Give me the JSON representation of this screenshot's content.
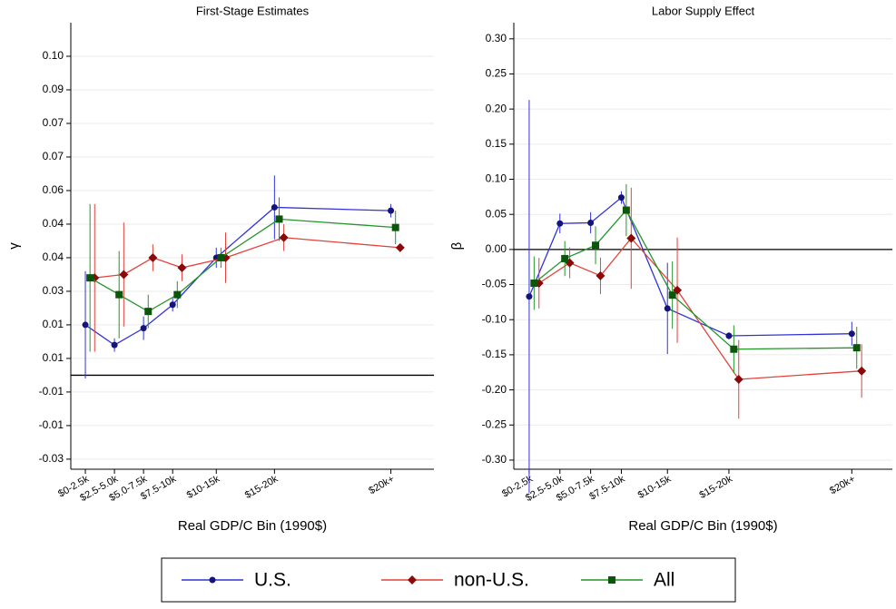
{
  "chart_data": [
    {
      "type": "line",
      "title": "First-Stage Estimates",
      "x_label": "Real GDP/C Bin (1990$)",
      "y_label": "γ",
      "xlim": [
        0,
        31.2
      ],
      "xticks": [
        {
          "value": 1.25,
          "label": "$0-2.5k"
        },
        {
          "value": 3.75,
          "label": "$2.5-5.0k"
        },
        {
          "value": 6.25,
          "label": "$5.0-7.5k"
        },
        {
          "value": 8.75,
          "label": "$7.5-10k"
        },
        {
          "value": 12.5,
          "label": "$10-15k"
        },
        {
          "value": 17.5,
          "label": "$15-20k"
        },
        {
          "value": 27.5,
          "label": "$20k+"
        }
      ],
      "ylim": [
        -0.028,
        0.105
      ],
      "yticks": [
        {
          "value": -0.025,
          "label": "-0.03"
        },
        {
          "value": -0.015,
          "label": "-0.01"
        },
        {
          "value": -0.005,
          "label": "-0.01"
        },
        {
          "value": 0.005,
          "label": "0.01"
        },
        {
          "value": 0.015,
          "label": "0.01"
        },
        {
          "value": 0.025,
          "label": "0.03"
        },
        {
          "value": 0.035,
          "label": "0.04"
        },
        {
          "value": 0.045,
          "label": "0.04"
        },
        {
          "value": 0.055,
          "label": "0.06"
        },
        {
          "value": 0.065,
          "label": "0.07"
        },
        {
          "value": 0.075,
          "label": "0.07"
        },
        {
          "value": 0.085,
          "label": "0.09"
        },
        {
          "value": 0.095,
          "label": "0.10"
        }
      ],
      "grid": true,
      "hline": 0,
      "series": [
        {
          "name": "U.S.",
          "color": "#3232d8",
          "marker": "circle",
          "marker_color": "#14147a",
          "x": [
            1.25,
            3.75,
            6.25,
            8.75,
            12.5,
            17.5,
            27.5
          ],
          "values": [
            0.015,
            0.009,
            0.014,
            0.021,
            0.035,
            0.05,
            0.049
          ],
          "errors": [
            0.016,
            0.002,
            0.0035,
            0.002,
            0.003,
            0.0095,
            0.002
          ]
        },
        {
          "name": "non-U.S.",
          "color": "#e2423a",
          "marker": "diamond",
          "marker_color": "#8a0a0a",
          "x": [
            2.05,
            4.55,
            7.05,
            9.55,
            13.3,
            18.3,
            28.3
          ],
          "values": [
            0.029,
            0.03,
            0.035,
            0.032,
            0.035,
            0.041,
            0.038
          ],
          "errors": [
            0.022,
            0.0155,
            0.004,
            0.004,
            0.0075,
            0.004,
            0
          ]
        },
        {
          "name": "All",
          "color": "#24952a",
          "marker": "square",
          "marker_color": "#0b560b",
          "x": [
            1.65,
            4.15,
            6.65,
            9.15,
            12.9,
            17.9,
            27.9
          ],
          "values": [
            0.029,
            0.024,
            0.019,
            0.024,
            0.035,
            0.0465,
            0.044
          ],
          "errors": [
            0.022,
            0.013,
            0.005,
            0.004,
            0.003,
            0.0065,
            0.005
          ]
        }
      ]
    },
    {
      "type": "line",
      "title": "Labor Supply Effect",
      "x_label": "Real GDP/C Bin (1990$)",
      "y_label": "β",
      "xlim": [
        0,
        30.8
      ],
      "xticks": [
        {
          "value": 1.25,
          "label": "$0-2.5k"
        },
        {
          "value": 3.75,
          "label": "$2.5-5.0k"
        },
        {
          "value": 6.25,
          "label": "$5.0-7.5k"
        },
        {
          "value": 8.75,
          "label": "$7.5-10k"
        },
        {
          "value": 12.5,
          "label": "$10-15k"
        },
        {
          "value": 17.5,
          "label": "$15-20k"
        },
        {
          "value": 27.5,
          "label": "$20k+"
        }
      ],
      "ylim": [
        -0.313,
        0.323
      ],
      "yticks": [
        {
          "value": -0.3,
          "label": "-0.30"
        },
        {
          "value": -0.25,
          "label": "-0.25"
        },
        {
          "value": -0.2,
          "label": "-0.20"
        },
        {
          "value": -0.15,
          "label": "-0.15"
        },
        {
          "value": -0.1,
          "label": "-0.10"
        },
        {
          "value": -0.05,
          "label": "-0.05"
        },
        {
          "value": 0,
          "label": "0.00"
        },
        {
          "value": 0.05,
          "label": "0.05"
        },
        {
          "value": 0.1,
          "label": "0.10"
        },
        {
          "value": 0.15,
          "label": "0.15"
        },
        {
          "value": 0.2,
          "label": "0.20"
        },
        {
          "value": 0.25,
          "label": "0.25"
        },
        {
          "value": 0.3,
          "label": "0.30"
        }
      ],
      "grid": true,
      "hline": 0,
      "series": [
        {
          "name": "U.S.",
          "color": "#3232d8",
          "marker": "circle",
          "marker_color": "#14147a",
          "x": [
            1.25,
            3.75,
            6.25,
            8.75,
            12.5,
            17.5,
            27.5
          ],
          "values": [
            -0.067,
            0.037,
            0.038,
            0.074,
            -0.084,
            -0.123,
            -0.12
          ],
          "errors": [
            0.28,
            0.014,
            0.015,
            0.009,
            0.065,
            0.005,
            0.017
          ]
        },
        {
          "name": "non-U.S.",
          "color": "#e2423a",
          "marker": "diamond",
          "marker_color": "#8a0a0a",
          "x": [
            2.05,
            4.55,
            7.05,
            9.55,
            13.3,
            18.3,
            28.3
          ],
          "values": [
            -0.048,
            -0.019,
            -0.0375,
            0.016,
            -0.058,
            -0.185,
            -0.173
          ],
          "errors": [
            0.036,
            0.022,
            0.026,
            0.072,
            0.075,
            0.056,
            0.038
          ]
        },
        {
          "name": "All",
          "color": "#24952a",
          "marker": "square",
          "marker_color": "#0b560b",
          "x": [
            1.65,
            4.15,
            6.65,
            9.15,
            12.9,
            17.9,
            27.9
          ],
          "values": [
            -0.048,
            -0.013,
            0.006,
            0.056,
            -0.065,
            -0.142,
            -0.14
          ],
          "errors": [
            0.038,
            0.025,
            0.027,
            0.037,
            0.048,
            0.034,
            0.03
          ]
        }
      ]
    }
  ]
}
